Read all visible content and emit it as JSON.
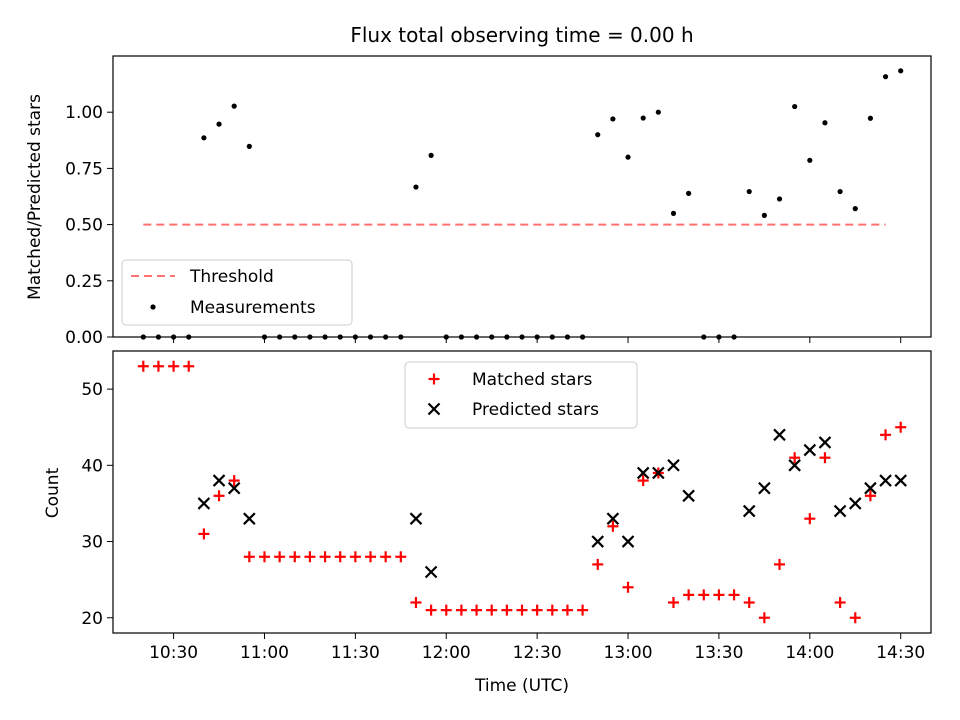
{
  "chart_data": [
    {
      "type": "scatter",
      "title": "Flux total observing time = 0.00 h",
      "xlabel": "",
      "ylabel": "Matched/Predicted stars",
      "xlim": [
        "10:10",
        "14:40"
      ],
      "ylim": [
        0.0,
        1.25
      ],
      "yticks": [
        0.0,
        0.25,
        0.5,
        0.75,
        1.0
      ],
      "ytick_labels": [
        "0.00",
        "0.25",
        "0.50",
        "0.75",
        "1.00"
      ],
      "legend_position": "bottom-left",
      "colors": {
        "threshold": "#ff7070",
        "measurements": "#000000"
      },
      "threshold": {
        "name": "Threshold",
        "value": 0.5,
        "x": [
          "10:20",
          "14:25"
        ]
      },
      "series": [
        {
          "name": "Measurements",
          "points": [
            [
              "10:20",
              0.0
            ],
            [
              "10:25",
              0.0
            ],
            [
              "10:30",
              0.0
            ],
            [
              "10:35",
              0.0
            ],
            [
              "10:40",
              0.886
            ],
            [
              "10:45",
              0.947
            ],
            [
              "10:50",
              1.027
            ],
            [
              "10:55",
              0.848
            ],
            [
              "11:00",
              0.0
            ],
            [
              "11:05",
              0.0
            ],
            [
              "11:10",
              0.0
            ],
            [
              "11:15",
              0.0
            ],
            [
              "11:20",
              0.0
            ],
            [
              "11:25",
              0.0
            ],
            [
              "11:30",
              0.0
            ],
            [
              "11:35",
              0.0
            ],
            [
              "11:40",
              0.0
            ],
            [
              "11:45",
              0.0
            ],
            [
              "11:50",
              0.667
            ],
            [
              "11:55",
              0.808
            ],
            [
              "12:00",
              0.0
            ],
            [
              "12:05",
              0.0
            ],
            [
              "12:10",
              0.0
            ],
            [
              "12:15",
              0.0
            ],
            [
              "12:20",
              0.0
            ],
            [
              "12:25",
              0.0
            ],
            [
              "12:30",
              0.0
            ],
            [
              "12:35",
              0.0
            ],
            [
              "12:40",
              0.0
            ],
            [
              "12:45",
              0.0
            ],
            [
              "12:50",
              0.9
            ],
            [
              "12:55",
              0.97
            ],
            [
              "13:00",
              0.8
            ],
            [
              "13:05",
              0.974
            ],
            [
              "13:10",
              1.0
            ],
            [
              "13:15",
              0.55
            ],
            [
              "13:20",
              0.639
            ],
            [
              "13:25",
              0.0
            ],
            [
              "13:30",
              0.0
            ],
            [
              "13:35",
              0.0
            ],
            [
              "13:40",
              0.647
            ],
            [
              "13:45",
              0.541
            ],
            [
              "13:50",
              0.614
            ],
            [
              "13:55",
              1.025
            ],
            [
              "14:00",
              0.786
            ],
            [
              "14:05",
              0.953
            ],
            [
              "14:10",
              0.647
            ],
            [
              "14:15",
              0.571
            ],
            [
              "14:20",
              0.973
            ],
            [
              "14:25",
              1.158
            ],
            [
              "14:30",
              1.184
            ]
          ]
        }
      ]
    },
    {
      "type": "scatter",
      "title": "",
      "xlabel": "Time (UTC)",
      "ylabel": "Count",
      "xlim": [
        "10:10",
        "14:40"
      ],
      "ylim": [
        18.0,
        55.0
      ],
      "yticks": [
        20,
        30,
        40,
        50
      ],
      "xtick_labels": [
        "10:30",
        "11:00",
        "11:30",
        "12:00",
        "12:30",
        "13:00",
        "13:30",
        "14:00",
        "14:30"
      ],
      "legend_position": "top-center",
      "colors": {
        "matched": "#ff0000",
        "predicted": "#000000"
      },
      "series": [
        {
          "name": "Matched stars",
          "marker": "plus",
          "points": [
            [
              "10:20",
              53
            ],
            [
              "10:25",
              53
            ],
            [
              "10:30",
              53
            ],
            [
              "10:35",
              53
            ],
            [
              "10:40",
              31
            ],
            [
              "10:45",
              36
            ],
            [
              "10:50",
              38
            ],
            [
              "10:55",
              28
            ],
            [
              "11:00",
              28
            ],
            [
              "11:05",
              28
            ],
            [
              "11:10",
              28
            ],
            [
              "11:15",
              28
            ],
            [
              "11:20",
              28
            ],
            [
              "11:25",
              28
            ],
            [
              "11:30",
              28
            ],
            [
              "11:35",
              28
            ],
            [
              "11:40",
              28
            ],
            [
              "11:45",
              28
            ],
            [
              "11:50",
              22
            ],
            [
              "11:55",
              21
            ],
            [
              "12:00",
              21
            ],
            [
              "12:05",
              21
            ],
            [
              "12:10",
              21
            ],
            [
              "12:15",
              21
            ],
            [
              "12:20",
              21
            ],
            [
              "12:25",
              21
            ],
            [
              "12:30",
              21
            ],
            [
              "12:35",
              21
            ],
            [
              "12:40",
              21
            ],
            [
              "12:45",
              21
            ],
            [
              "12:50",
              27
            ],
            [
              "12:55",
              32
            ],
            [
              "13:00",
              24
            ],
            [
              "13:05",
              38
            ],
            [
              "13:10",
              39
            ],
            [
              "13:15",
              22
            ],
            [
              "13:20",
              23
            ],
            [
              "13:25",
              23
            ],
            [
              "13:30",
              23
            ],
            [
              "13:35",
              23
            ],
            [
              "13:40",
              22
            ],
            [
              "13:45",
              20
            ],
            [
              "13:50",
              27
            ],
            [
              "13:55",
              41
            ],
            [
              "14:00",
              33
            ],
            [
              "14:05",
              41
            ],
            [
              "14:10",
              22
            ],
            [
              "14:15",
              20
            ],
            [
              "14:20",
              36
            ],
            [
              "14:25",
              44
            ],
            [
              "14:30",
              45
            ]
          ]
        },
        {
          "name": "Predicted stars",
          "marker": "x",
          "points": [
            [
              "10:40",
              35
            ],
            [
              "10:45",
              38
            ],
            [
              "10:50",
              37
            ],
            [
              "10:55",
              33
            ],
            [
              "11:50",
              33
            ],
            [
              "11:55",
              26
            ],
            [
              "12:50",
              30
            ],
            [
              "12:55",
              33
            ],
            [
              "13:00",
              30
            ],
            [
              "13:05",
              39
            ],
            [
              "13:10",
              39
            ],
            [
              "13:15",
              40
            ],
            [
              "13:20",
              36
            ],
            [
              "13:40",
              34
            ],
            [
              "13:45",
              37
            ],
            [
              "13:50",
              44
            ],
            [
              "13:55",
              40
            ],
            [
              "14:00",
              42
            ],
            [
              "14:05",
              43
            ],
            [
              "14:10",
              34
            ],
            [
              "14:15",
              35
            ],
            [
              "14:20",
              37
            ],
            [
              "14:25",
              38
            ],
            [
              "14:30",
              38
            ]
          ]
        }
      ]
    }
  ]
}
